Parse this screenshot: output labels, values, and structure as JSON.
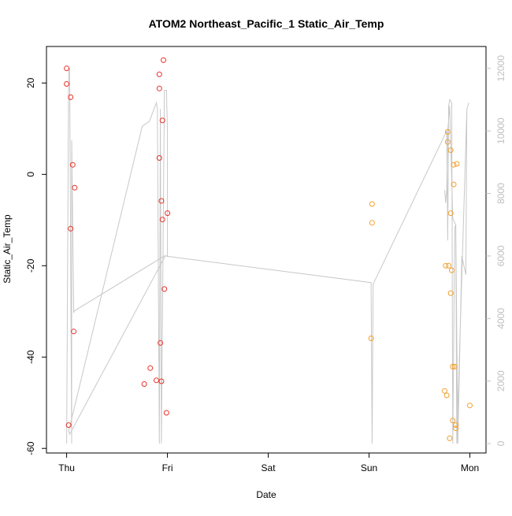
{
  "chart_data": {
    "type": "scatter",
    "title": "ATOM2 Northeast_Pacific_1 Static_Air_Temp",
    "xlabel": "Date",
    "ylabel": "Static_Air_Temp",
    "x_ticks": [
      {
        "label": "Thu",
        "day": 0
      },
      {
        "label": "Fri",
        "day": 1
      },
      {
        "label": "Sat",
        "day": 2
      },
      {
        "label": "Sun",
        "day": 3
      },
      {
        "label": "Mon",
        "day": 4
      }
    ],
    "xlim_days": [
      -0.2,
      4.16
    ],
    "ylim": [
      -61,
      28
    ],
    "y_ticks": [
      -60,
      -40,
      -20,
      0,
      20
    ],
    "y2lim": [
      -300,
      12700
    ],
    "y2_ticks": [
      0,
      2000,
      4000,
      6000,
      8000,
      10000,
      12000
    ],
    "colors": {
      "series_red": "#e8332b",
      "series_orange": "#f0a030",
      "altitude_line": "#c8c8c8",
      "axis": "#000000",
      "right_axis": "#bfbfbf"
    },
    "series": [
      {
        "color_key": "series_red",
        "points": [
          {
            "day": 0.0,
            "temp": 23.2
          },
          {
            "day": 0.0,
            "temp": 19.8
          },
          {
            "day": 0.04,
            "temp": 16.9
          },
          {
            "day": 0.06,
            "temp": 2.1
          },
          {
            "day": 0.08,
            "temp": -2.9
          },
          {
            "day": 0.04,
            "temp": -11.9
          },
          {
            "day": 0.07,
            "temp": -34.4
          },
          {
            "day": 0.02,
            "temp": -54.9
          },
          {
            "day": 0.77,
            "temp": -45.9
          },
          {
            "day": 0.83,
            "temp": -42.4
          },
          {
            "day": 0.89,
            "temp": -45.1
          },
          {
            "day": 0.94,
            "temp": -45.3
          },
          {
            "day": 0.93,
            "temp": -36.9
          },
          {
            "day": 0.97,
            "temp": -25.1
          },
          {
            "day": 0.99,
            "temp": -52.2
          },
          {
            "day": 0.94,
            "temp": -5.8
          },
          {
            "day": 0.95,
            "temp": -9.9
          },
          {
            "day": 1.0,
            "temp": -8.5
          },
          {
            "day": 0.92,
            "temp": 3.6
          },
          {
            "day": 0.95,
            "temp": 11.8
          },
          {
            "day": 0.92,
            "temp": 18.8
          },
          {
            "day": 0.92,
            "temp": 21.9
          },
          {
            "day": 0.96,
            "temp": 25.0
          }
        ]
      },
      {
        "color_key": "series_orange",
        "points": [
          {
            "day": 3.03,
            "temp": -6.5
          },
          {
            "day": 3.03,
            "temp": -10.6
          },
          {
            "day": 3.02,
            "temp": -35.9
          },
          {
            "day": 3.76,
            "temp": -20.0
          },
          {
            "day": 3.79,
            "temp": -20.0
          },
          {
            "day": 3.82,
            "temp": -21.0
          },
          {
            "day": 3.81,
            "temp": -26.0
          },
          {
            "day": 3.78,
            "temp": 9.3
          },
          {
            "day": 3.78,
            "temp": 7.1
          },
          {
            "day": 3.81,
            "temp": 5.3
          },
          {
            "day": 3.84,
            "temp": 2.1
          },
          {
            "day": 3.87,
            "temp": 2.3
          },
          {
            "day": 3.84,
            "temp": -2.2
          },
          {
            "day": 3.81,
            "temp": -8.5
          },
          {
            "day": 3.83,
            "temp": -42.1
          },
          {
            "day": 3.85,
            "temp": -42.1
          },
          {
            "day": 3.75,
            "temp": -47.4
          },
          {
            "day": 3.77,
            "temp": -48.4
          },
          {
            "day": 3.83,
            "temp": -53.9
          },
          {
            "day": 3.86,
            "temp": -54.9
          },
          {
            "day": 3.86,
            "temp": -55.6
          },
          {
            "day": 3.8,
            "temp": -57.8
          },
          {
            "day": 4.0,
            "temp": -50.6
          }
        ]
      }
    ],
    "altitude_line": [
      [
        0.0,
        0
      ],
      [
        0.02,
        12000
      ],
      [
        0.03,
        12000
      ],
      [
        0.05,
        0
      ],
      [
        0.05,
        9700
      ],
      [
        0.07,
        4200
      ],
      [
        0.08,
        4250
      ],
      [
        0.97,
        6000
      ],
      [
        0.97,
        5950
      ],
      [
        0.03,
        300
      ],
      [
        0.02,
        400
      ],
      [
        0.75,
        10150
      ],
      [
        0.82,
        10300
      ],
      [
        0.89,
        10900
      ],
      [
        0.9,
        10700
      ],
      [
        0.92,
        0
      ],
      [
        0.93,
        10700
      ],
      [
        0.94,
        0
      ],
      [
        0.97,
        11300
      ],
      [
        0.99,
        11300
      ],
      [
        1.0,
        10000
      ],
      [
        1.0,
        6000
      ],
      [
        0.98,
        6000
      ],
      [
        0.97,
        6000
      ],
      [
        3.02,
        5150
      ],
      [
        3.03,
        0
      ],
      [
        3.04,
        5100
      ],
      [
        3.77,
        10000
      ],
      [
        3.78,
        6500
      ],
      [
        3.79,
        10800
      ],
      [
        3.8,
        11000
      ],
      [
        3.82,
        10900
      ],
      [
        3.83,
        0
      ],
      [
        3.85,
        6900
      ],
      [
        3.86,
        7000
      ],
      [
        3.87,
        0
      ],
      [
        3.97,
        10700
      ],
      [
        3.99,
        10900
      ],
      [
        3.97,
        10700
      ],
      [
        3.96,
        5400
      ],
      [
        3.92,
        6000
      ],
      [
        3.88,
        0
      ],
      [
        3.86,
        7000
      ],
      [
        3.83,
        7200
      ],
      [
        3.8,
        10800
      ],
      [
        3.78,
        10000
      ],
      [
        3.77,
        8100
      ],
      [
        3.76,
        7700
      ],
      [
        3.75,
        8100
      ]
    ]
  }
}
